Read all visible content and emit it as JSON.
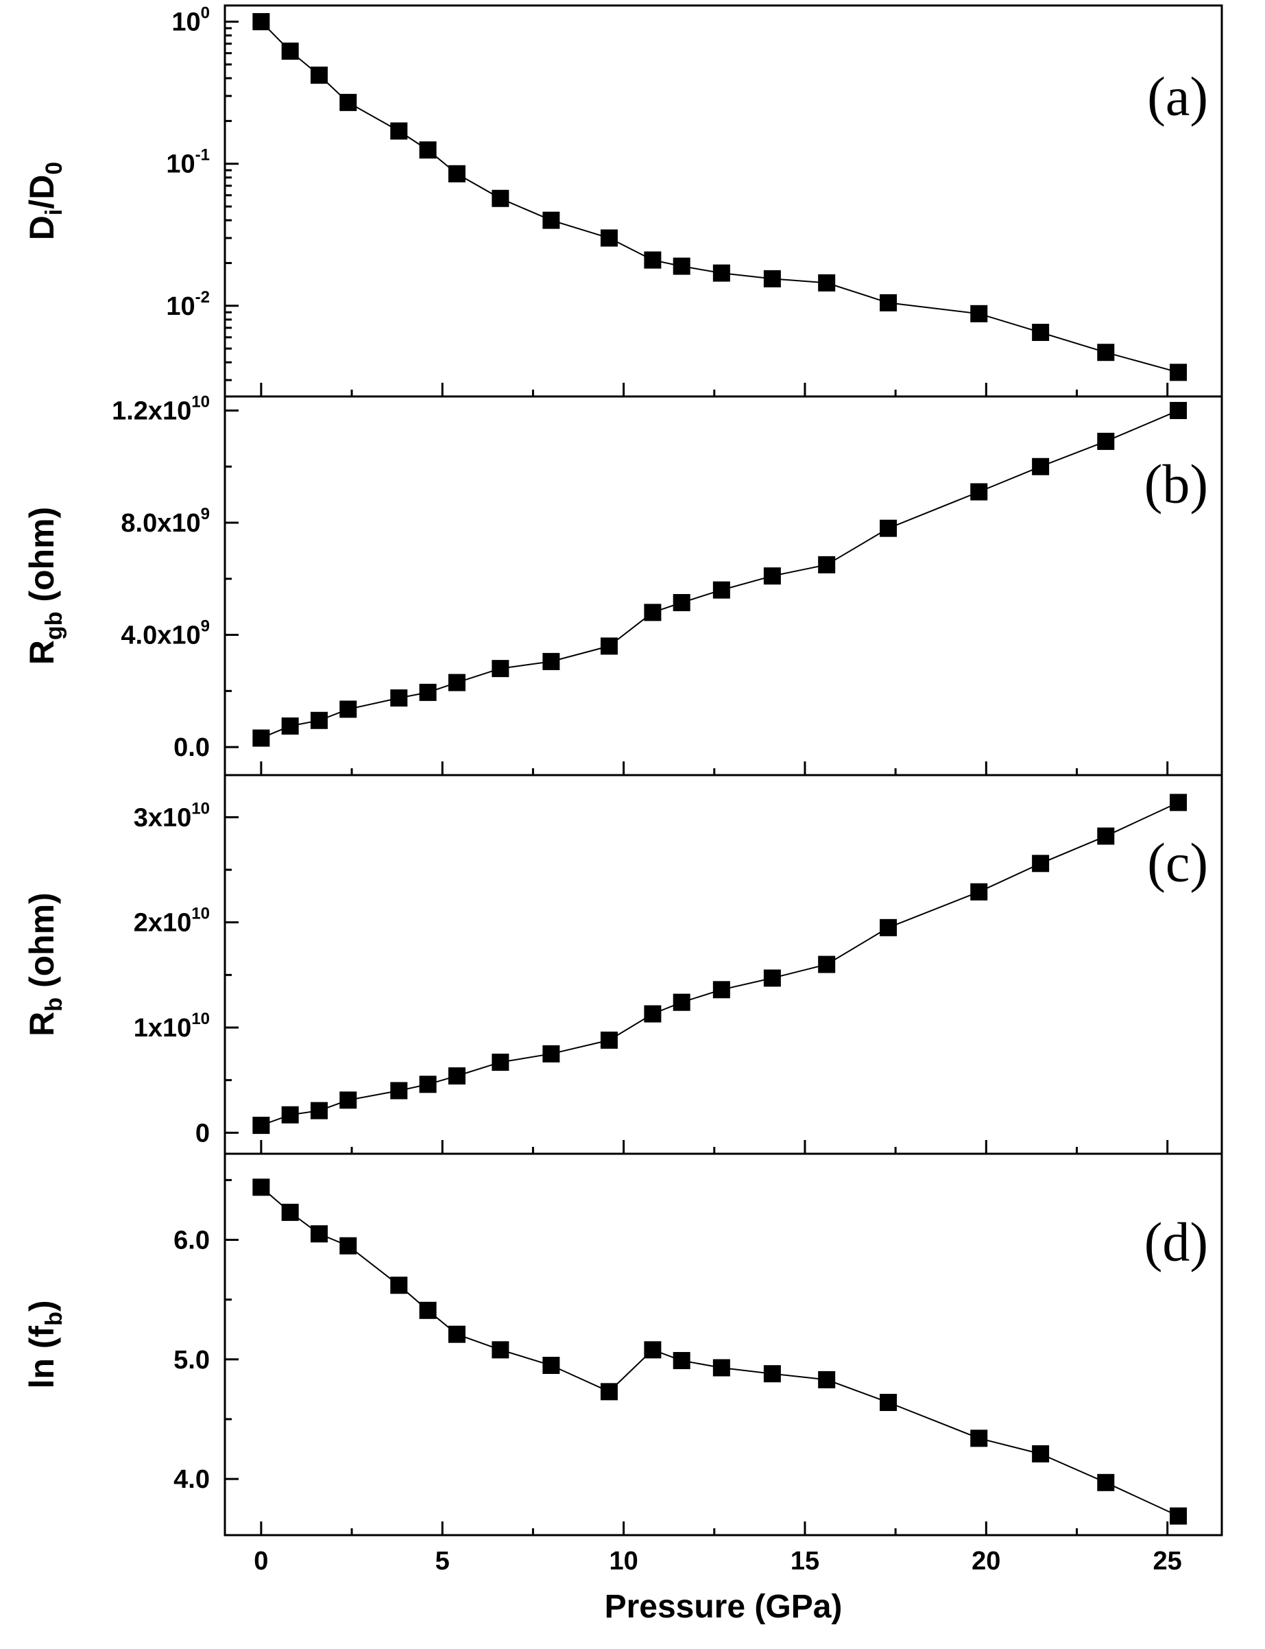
{
  "chart_data": {
    "type": "line",
    "xlabel": "Pressure (GPa)",
    "xlim": [
      -1,
      26.5
    ],
    "xticks": [
      "0",
      "5",
      "10",
      "15",
      "20",
      "25"
    ],
    "x": [
      0,
      0.8,
      1.6,
      2.4,
      3.8,
      4.6,
      5.4,
      6.6,
      8.0,
      9.6,
      10.8,
      11.6,
      12.7,
      14.1,
      15.6,
      17.3,
      19.8,
      21.5,
      23.3,
      25.3
    ],
    "panels": [
      {
        "id": "a",
        "label": "(a)",
        "ylabel": {
          "main": "D",
          "sub": "i",
          "mid": "/D",
          "sub2": "0"
        },
        "scale": "log",
        "ylim": [
          0.0023,
          1.3
        ],
        "yticks": [
          {
            "value": 1,
            "base": "10",
            "exp": "0"
          },
          {
            "value": 0.1,
            "base": "10",
            "exp": "-1"
          },
          {
            "value": 0.01,
            "base": "10",
            "exp": "-2"
          }
        ],
        "values": [
          1.0,
          0.62,
          0.42,
          0.27,
          0.17,
          0.125,
          0.085,
          0.057,
          0.04,
          0.03,
          0.021,
          0.019,
          0.017,
          0.0155,
          0.0145,
          0.0105,
          0.0088,
          0.0065,
          0.0047,
          0.0034
        ]
      },
      {
        "id": "b",
        "label": "(b)",
        "ylabel": {
          "main": "R",
          "sub": "gb",
          "rest": " (ohm)"
        },
        "scale": "linear",
        "ylim": [
          -1000000000.0,
          12500000000.0
        ],
        "yticks": [
          {
            "value": 0,
            "base": "0.0",
            "exp": ""
          },
          {
            "value": 4000000000.0,
            "base": "4.0x10",
            "exp": "9"
          },
          {
            "value": 8000000000.0,
            "base": "8.0x10",
            "exp": "9"
          },
          {
            "value": 12000000000.0,
            "base": "1.2x10",
            "exp": "10"
          }
        ],
        "values": [
          320000000.0,
          750000000.0,
          950000000.0,
          1350000000.0,
          1750000000.0,
          1950000000.0,
          2300000000.0,
          2800000000.0,
          3050000000.0,
          3600000000.0,
          4800000000.0,
          5150000000.0,
          5600000000.0,
          6100000000.0,
          6500000000.0,
          7800000000.0,
          9100000000.0,
          10000000000.0,
          10900000000.0,
          12000000000.0
        ]
      },
      {
        "id": "c",
        "label": "(c)",
        "ylabel": {
          "main": "R",
          "sub": "b",
          "rest": " (ohm)"
        },
        "scale": "linear",
        "ylim": [
          -2000000000.0,
          34000000000.0
        ],
        "yticks": [
          {
            "value": 0,
            "base": "0",
            "exp": ""
          },
          {
            "value": 10000000000.0,
            "base": "1x10",
            "exp": "10"
          },
          {
            "value": 20000000000.0,
            "base": "2x10",
            "exp": "10"
          },
          {
            "value": 30000000000.0,
            "base": "3x10",
            "exp": "10"
          }
        ],
        "values": [
          700000000.0,
          1700000000.0,
          2100000000.0,
          3100000000.0,
          4000000000.0,
          4600000000.0,
          5400000000.0,
          6700000000.0,
          7500000000.0,
          8800000000.0,
          11300000000.0,
          12400000000.0,
          13600000000.0,
          14700000000.0,
          16000000000.0,
          19500000000.0,
          22900000000.0,
          25600000000.0,
          28200000000.0,
          31400000000.0
        ]
      },
      {
        "id": "d",
        "label": "(d)",
        "ylabel": {
          "main": "ln (f",
          "sub": "b",
          "rest": ")"
        },
        "scale": "linear",
        "ylim": [
          3.53,
          6.72
        ],
        "yticks": [
          {
            "value": 4.0,
            "base": "4.0",
            "exp": ""
          },
          {
            "value": 5.0,
            "base": "5.0",
            "exp": ""
          },
          {
            "value": 6.0,
            "base": "6.0",
            "exp": ""
          }
        ],
        "values": [
          6.44,
          6.23,
          6.05,
          5.95,
          5.62,
          5.41,
          5.21,
          5.08,
          4.95,
          4.73,
          5.08,
          4.99,
          4.93,
          4.88,
          4.83,
          4.64,
          4.34,
          4.21,
          3.97,
          3.69
        ]
      }
    ]
  }
}
